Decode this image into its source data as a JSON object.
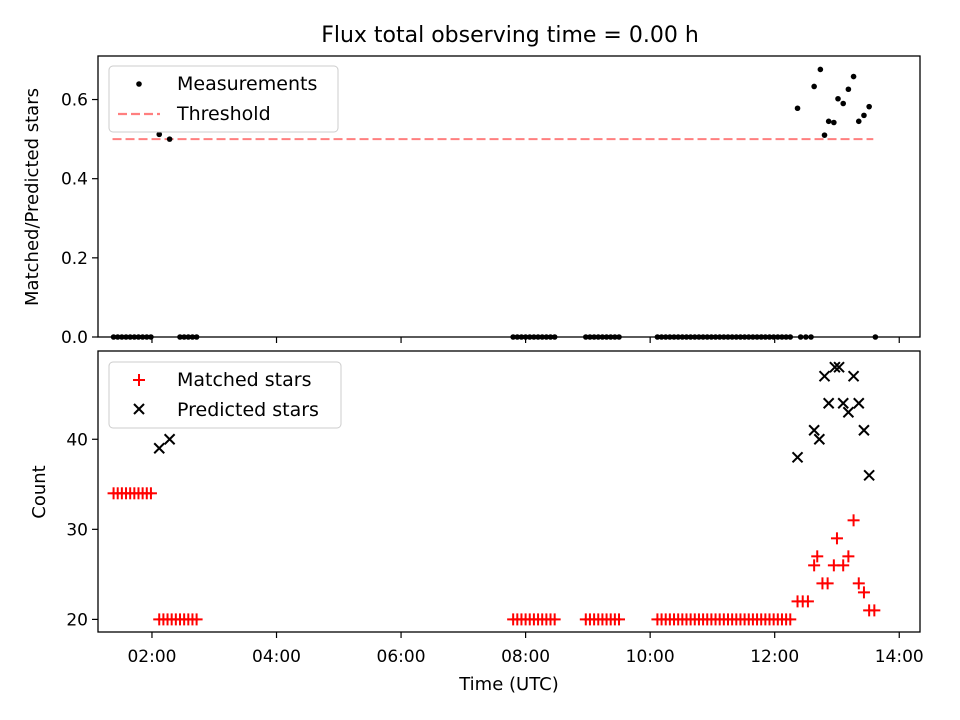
{
  "chart_data": [
    {
      "type": "scatter",
      "title": "Flux total observing time = 0.00 h",
      "ylabel": "Matched/Predicted stars",
      "xlabel": "",
      "xlim": [
        "01:08",
        "14:20"
      ],
      "ylim": [
        0,
        0.71
      ],
      "yticks": [
        0.0,
        0.2,
        0.4,
        0.6
      ],
      "ytick_labels": [
        "0.0",
        "0.2",
        "0.4",
        "0.6"
      ],
      "xticks": [
        "02:00",
        "04:00",
        "06:00",
        "08:00",
        "10:00",
        "12:00",
        "14:00"
      ],
      "grid": false,
      "legend": {
        "placement": "upper-left",
        "entries": [
          "Measurements",
          "Threshold"
        ]
      },
      "colors": {
        "measurements": "#000000",
        "threshold": "#ff7f7f"
      },
      "threshold": {
        "name": "Threshold",
        "value": 0.5,
        "x_start": "01:22",
        "x_end": "13:35"
      },
      "series": [
        {
          "name": "Measurements",
          "points": [
            [
              "01:23",
              0
            ],
            [
              "01:27",
              0
            ],
            [
              "01:31",
              0
            ],
            [
              "01:35",
              0
            ],
            [
              "01:39",
              0
            ],
            [
              "01:43",
              0
            ],
            [
              "01:47",
              0
            ],
            [
              "01:51",
              0
            ],
            [
              "01:55",
              0
            ],
            [
              "01:59",
              0
            ],
            [
              "02:07",
              0.512
            ],
            [
              "02:17",
              0.5
            ],
            [
              "02:27",
              0
            ],
            [
              "02:31",
              0
            ],
            [
              "02:35",
              0
            ],
            [
              "02:39",
              0
            ],
            [
              "02:43",
              0
            ],
            [
              "07:48",
              0
            ],
            [
              "07:52",
              0
            ],
            [
              "07:56",
              0
            ],
            [
              "08:00",
              0
            ],
            [
              "08:04",
              0
            ],
            [
              "08:08",
              0
            ],
            [
              "08:12",
              0
            ],
            [
              "08:16",
              0
            ],
            [
              "08:20",
              0
            ],
            [
              "08:24",
              0
            ],
            [
              "08:28",
              0
            ],
            [
              "08:58",
              0
            ],
            [
              "09:02",
              0
            ],
            [
              "09:06",
              0
            ],
            [
              "09:10",
              0
            ],
            [
              "09:14",
              0
            ],
            [
              "09:18",
              0
            ],
            [
              "09:22",
              0
            ],
            [
              "09:26",
              0
            ],
            [
              "09:30",
              0
            ],
            [
              "10:07",
              0
            ],
            [
              "10:11",
              0
            ],
            [
              "10:15",
              0
            ],
            [
              "10:19",
              0
            ],
            [
              "10:23",
              0
            ],
            [
              "10:27",
              0
            ],
            [
              "10:31",
              0
            ],
            [
              "10:35",
              0
            ],
            [
              "10:39",
              0
            ],
            [
              "10:43",
              0
            ],
            [
              "10:47",
              0
            ],
            [
              "10:51",
              0
            ],
            [
              "10:55",
              0
            ],
            [
              "10:59",
              0
            ],
            [
              "11:03",
              0
            ],
            [
              "11:07",
              0
            ],
            [
              "11:11",
              0
            ],
            [
              "11:15",
              0
            ],
            [
              "11:19",
              0
            ],
            [
              "11:23",
              0
            ],
            [
              "11:27",
              0
            ],
            [
              "11:31",
              0
            ],
            [
              "11:35",
              0
            ],
            [
              "11:39",
              0
            ],
            [
              "11:43",
              0
            ],
            [
              "11:47",
              0
            ],
            [
              "11:51",
              0
            ],
            [
              "11:55",
              0
            ],
            [
              "11:59",
              0
            ],
            [
              "12:03",
              0
            ],
            [
              "12:07",
              0
            ],
            [
              "12:11",
              0
            ],
            [
              "12:15",
              0
            ],
            [
              "12:22",
              0.578
            ],
            [
              "12:25",
              0
            ],
            [
              "12:30",
              0
            ],
            [
              "12:35",
              0
            ],
            [
              "12:38",
              0.633
            ],
            [
              "12:44",
              0.676
            ],
            [
              "12:48",
              0.51
            ],
            [
              "12:52",
              0.545
            ],
            [
              "12:57",
              0.542
            ],
            [
              "13:01",
              0.602
            ],
            [
              "13:06",
              0.59
            ],
            [
              "13:11",
              0.626
            ],
            [
              "13:16",
              0.658
            ],
            [
              "13:21",
              0.545
            ],
            [
              "13:26",
              0.56
            ],
            [
              "13:31",
              0.582
            ],
            [
              "13:37",
              0
            ]
          ]
        }
      ]
    },
    {
      "type": "scatter",
      "title": "",
      "ylabel": "Count",
      "xlabel": "Time (UTC)",
      "xlim": [
        "01:08",
        "14:20"
      ],
      "ylim": [
        18.6,
        49.8
      ],
      "yticks": [
        20,
        30,
        40
      ],
      "ytick_labels": [
        "20",
        "30",
        "40"
      ],
      "xticks": [
        "02:00",
        "04:00",
        "06:00",
        "08:00",
        "10:00",
        "12:00",
        "14:00"
      ],
      "grid": false,
      "legend": {
        "placement": "upper-left",
        "entries": [
          "Matched stars",
          "Predicted stars"
        ]
      },
      "colors": {
        "matched": "#ff0000",
        "predicted": "#000000"
      },
      "series": [
        {
          "name": "Matched stars",
          "points": [
            [
              "01:23",
              34
            ],
            [
              "01:27",
              34
            ],
            [
              "01:31",
              34
            ],
            [
              "01:35",
              34
            ],
            [
              "01:39",
              34
            ],
            [
              "01:43",
              34
            ],
            [
              "01:47",
              34
            ],
            [
              "01:51",
              34
            ],
            [
              "01:55",
              34
            ],
            [
              "01:59",
              34
            ],
            [
              "02:07",
              20
            ],
            [
              "02:11",
              20
            ],
            [
              "02:15",
              20
            ],
            [
              "02:19",
              20
            ],
            [
              "02:23",
              20
            ],
            [
              "02:27",
              20
            ],
            [
              "02:31",
              20
            ],
            [
              "02:35",
              20
            ],
            [
              "02:39",
              20
            ],
            [
              "02:43",
              20
            ],
            [
              "07:48",
              20
            ],
            [
              "07:52",
              20
            ],
            [
              "07:56",
              20
            ],
            [
              "08:00",
              20
            ],
            [
              "08:04",
              20
            ],
            [
              "08:08",
              20
            ],
            [
              "08:12",
              20
            ],
            [
              "08:16",
              20
            ],
            [
              "08:20",
              20
            ],
            [
              "08:24",
              20
            ],
            [
              "08:28",
              20
            ],
            [
              "08:58",
              20
            ],
            [
              "09:02",
              20
            ],
            [
              "09:06",
              20
            ],
            [
              "09:10",
              20
            ],
            [
              "09:14",
              20
            ],
            [
              "09:18",
              20
            ],
            [
              "09:22",
              20
            ],
            [
              "09:26",
              20
            ],
            [
              "09:30",
              20
            ],
            [
              "10:07",
              20
            ],
            [
              "10:11",
              20
            ],
            [
              "10:15",
              20
            ],
            [
              "10:19",
              20
            ],
            [
              "10:23",
              20
            ],
            [
              "10:27",
              20
            ],
            [
              "10:31",
              20
            ],
            [
              "10:35",
              20
            ],
            [
              "10:39",
              20
            ],
            [
              "10:43",
              20
            ],
            [
              "10:47",
              20
            ],
            [
              "10:51",
              20
            ],
            [
              "10:55",
              20
            ],
            [
              "10:59",
              20
            ],
            [
              "11:03",
              20
            ],
            [
              "11:07",
              20
            ],
            [
              "11:11",
              20
            ],
            [
              "11:15",
              20
            ],
            [
              "11:19",
              20
            ],
            [
              "11:23",
              20
            ],
            [
              "11:27",
              20
            ],
            [
              "11:31",
              20
            ],
            [
              "11:35",
              20
            ],
            [
              "11:39",
              20
            ],
            [
              "11:43",
              20
            ],
            [
              "11:47",
              20
            ],
            [
              "11:51",
              20
            ],
            [
              "11:55",
              20
            ],
            [
              "11:59",
              20
            ],
            [
              "12:03",
              20
            ],
            [
              "12:07",
              20
            ],
            [
              "12:11",
              20
            ],
            [
              "12:15",
              20
            ],
            [
              "12:22",
              22
            ],
            [
              "12:27",
              22
            ],
            [
              "12:32",
              22
            ],
            [
              "12:38",
              26
            ],
            [
              "12:41",
              27
            ],
            [
              "12:46",
              24
            ],
            [
              "12:51",
              24
            ],
            [
              "12:57",
              26
            ],
            [
              "13:00",
              29
            ],
            [
              "13:06",
              26
            ],
            [
              "13:11",
              27
            ],
            [
              "13:16",
              31
            ],
            [
              "13:21",
              24
            ],
            [
              "13:26",
              23
            ],
            [
              "13:31",
              21
            ],
            [
              "13:36",
              21
            ]
          ]
        },
        {
          "name": "Predicted stars",
          "points": [
            [
              "02:07",
              39
            ],
            [
              "02:17",
              40
            ],
            [
              "12:22",
              38
            ],
            [
              "12:38",
              41
            ],
            [
              "12:43",
              40
            ],
            [
              "12:48",
              47
            ],
            [
              "12:52",
              44
            ],
            [
              "12:58",
              48
            ],
            [
              "13:02",
              48
            ],
            [
              "13:06",
              44
            ],
            [
              "13:11",
              43
            ],
            [
              "13:16",
              47
            ],
            [
              "13:21",
              44
            ],
            [
              "13:26",
              41
            ],
            [
              "13:31",
              36
            ]
          ]
        }
      ]
    }
  ]
}
